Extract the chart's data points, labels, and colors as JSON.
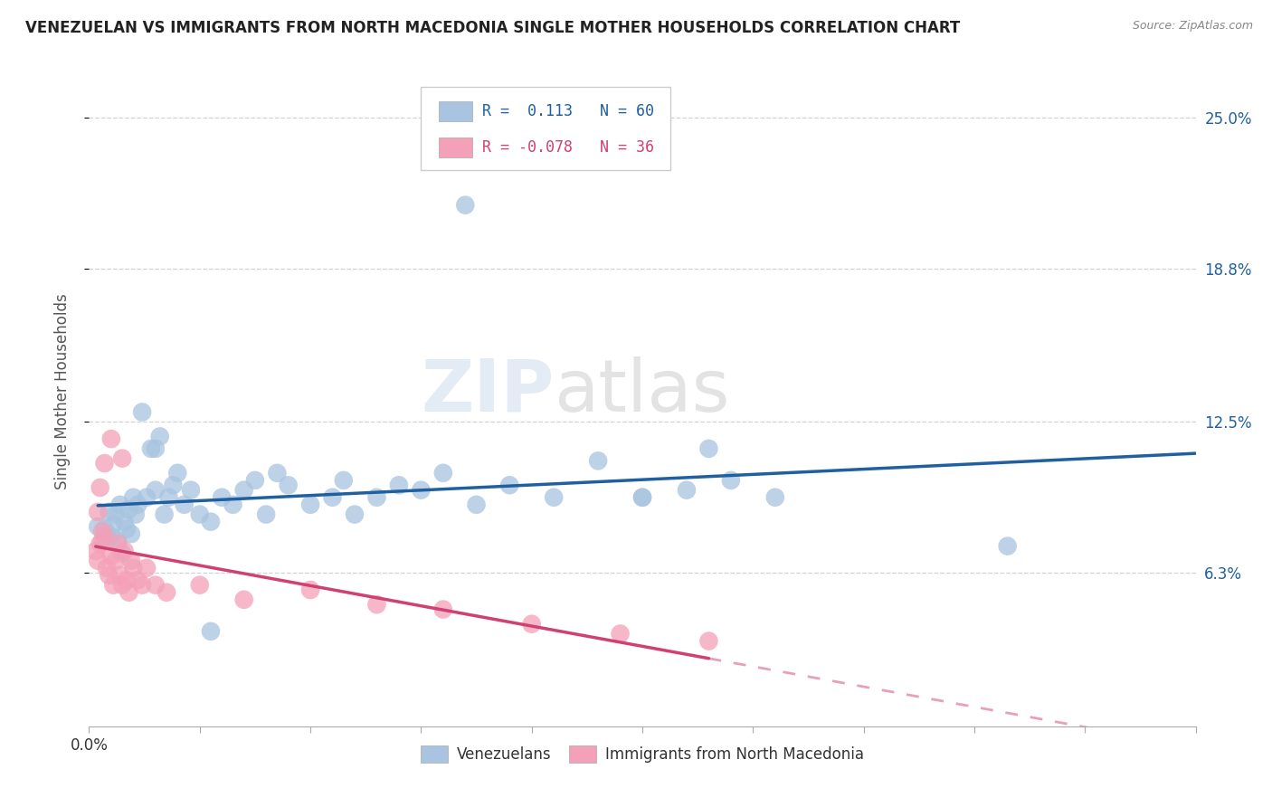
{
  "title": "VENEZUELAN VS IMMIGRANTS FROM NORTH MACEDONIA SINGLE MOTHER HOUSEHOLDS CORRELATION CHART",
  "source": "Source: ZipAtlas.com",
  "ylabel": "Single Mother Households",
  "xlim": [
    0.0,
    0.5
  ],
  "ylim": [
    0.0,
    0.275
  ],
  "yticks": [
    0.063,
    0.125,
    0.188,
    0.25
  ],
  "ytick_labels": [
    "6.3%",
    "12.5%",
    "18.8%",
    "25.0%"
  ],
  "xticks": [
    0.0,
    0.05,
    0.1,
    0.15,
    0.2,
    0.25,
    0.3,
    0.35,
    0.4,
    0.45,
    0.5
  ],
  "xtick_labels_shown": {
    "0.0": "0.0%"
  },
  "blue_color": "#a8c4e0",
  "blue_line_color": "#2060a0",
  "pink_color": "#f4a0b8",
  "pink_line_color": "#d04070",
  "pink_dash_color": "#e8a0b8",
  "R_blue": 0.113,
  "N_blue": 60,
  "R_pink": -0.078,
  "N_pink": 36,
  "legend_label_blue": "Venezuelans",
  "legend_label_pink": "Immigrants from North Macedonia",
  "background_color": "#ffffff",
  "grid_color": "#c8c8c8",
  "title_color": "#222222",
  "axis_label_color": "#555555",
  "blue_x": [
    0.004,
    0.006,
    0.007,
    0.008,
    0.009,
    0.01,
    0.011,
    0.012,
    0.013,
    0.014,
    0.015,
    0.016,
    0.017,
    0.018,
    0.019,
    0.02,
    0.021,
    0.022,
    0.024,
    0.026,
    0.028,
    0.03,
    0.032,
    0.034,
    0.036,
    0.038,
    0.04,
    0.043,
    0.046,
    0.05,
    0.055,
    0.06,
    0.065,
    0.07,
    0.075,
    0.08,
    0.09,
    0.1,
    0.11,
    0.12,
    0.13,
    0.14,
    0.15,
    0.16,
    0.175,
    0.19,
    0.21,
    0.23,
    0.25,
    0.27,
    0.29,
    0.31,
    0.28,
    0.17,
    0.085,
    0.415,
    0.055,
    0.03,
    0.25,
    0.115
  ],
  "blue_y": [
    0.082,
    0.076,
    0.081,
    0.079,
    0.088,
    0.078,
    0.083,
    0.087,
    0.076,
    0.091,
    0.071,
    0.084,
    0.081,
    0.089,
    0.079,
    0.094,
    0.087,
    0.091,
    0.129,
    0.094,
    0.114,
    0.097,
    0.119,
    0.087,
    0.094,
    0.099,
    0.104,
    0.091,
    0.097,
    0.087,
    0.084,
    0.094,
    0.091,
    0.097,
    0.101,
    0.087,
    0.099,
    0.091,
    0.094,
    0.087,
    0.094,
    0.099,
    0.097,
    0.104,
    0.091,
    0.099,
    0.094,
    0.109,
    0.094,
    0.097,
    0.101,
    0.094,
    0.114,
    0.214,
    0.104,
    0.074,
    0.039,
    0.114,
    0.094,
    0.101
  ],
  "pink_x": [
    0.003,
    0.004,
    0.005,
    0.006,
    0.007,
    0.008,
    0.009,
    0.01,
    0.011,
    0.012,
    0.013,
    0.014,
    0.015,
    0.016,
    0.017,
    0.018,
    0.019,
    0.02,
    0.022,
    0.024,
    0.026,
    0.03,
    0.035,
    0.05,
    0.07,
    0.1,
    0.13,
    0.16,
    0.2,
    0.24,
    0.28,
    0.015,
    0.01,
    0.007,
    0.005,
    0.004
  ],
  "pink_y": [
    0.072,
    0.068,
    0.075,
    0.08,
    0.078,
    0.065,
    0.062,
    0.07,
    0.058,
    0.068,
    0.075,
    0.062,
    0.058,
    0.072,
    0.06,
    0.055,
    0.068,
    0.065,
    0.06,
    0.058,
    0.065,
    0.058,
    0.055,
    0.058,
    0.052,
    0.056,
    0.05,
    0.048,
    0.042,
    0.038,
    0.035,
    0.11,
    0.118,
    0.108,
    0.098,
    0.088
  ]
}
